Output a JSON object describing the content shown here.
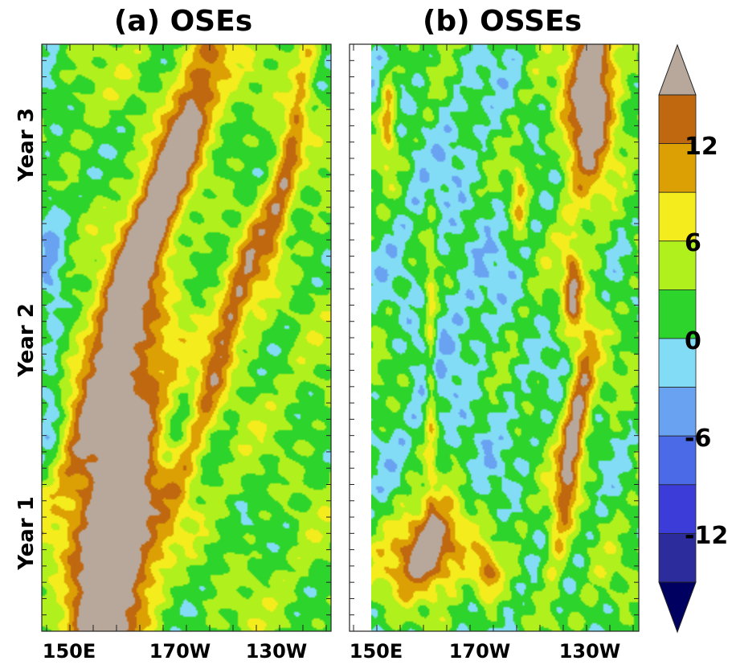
{
  "chart_data": [
    {
      "type": "heatmap",
      "title": "(a) OSEs",
      "xlabel": "",
      "ylabel": "",
      "x_tick_labels": [
        "150E",
        "170W",
        "130W"
      ],
      "y_tick_labels": [
        "Year 1",
        "Year 2",
        "Year 3"
      ],
      "x_range_deg_east": [
        140,
        245
      ],
      "x_ticks_deg_east": [
        150,
        190,
        230
      ],
      "y_range_years": [
        0,
        3
      ],
      "y_ticks_years": [
        0.5,
        1.5,
        2.5
      ]
    },
    {
      "type": "heatmap",
      "title": "(b) OSSEs",
      "xlabel": "",
      "ylabel": "",
      "x_tick_labels": [
        "150E",
        "170W",
        "130W"
      ],
      "y_tick_labels": [],
      "x_range_deg_east": [
        140,
        245
      ],
      "x_ticks_deg_east": [
        150,
        190,
        230
      ],
      "y_range_years": [
        0,
        3
      ],
      "y_ticks_years": [
        0.5,
        1.5,
        2.5
      ]
    }
  ],
  "colorbar": {
    "levels": [
      -18,
      -15,
      -12,
      -9,
      -6,
      -3,
      0,
      3,
      6,
      9,
      12,
      15
    ],
    "tick_labels": [
      "-12",
      "-6",
      "0",
      "6",
      "12"
    ],
    "tick_values": [
      -12,
      -6,
      0,
      6,
      12
    ],
    "min_arrow_color": "#000060",
    "max_arrow_color": "#b8a89c",
    "colors": [
      "#2c2c9c",
      "#3c3cd8",
      "#4a6ae8",
      "#6aa2f2",
      "#82dcf6",
      "#2cd42c",
      "#b0f01c",
      "#f4ec1c",
      "#dca004",
      "#c06810"
    ]
  },
  "palette": {
    "below": "#000060",
    "above": "#b8a89c"
  }
}
